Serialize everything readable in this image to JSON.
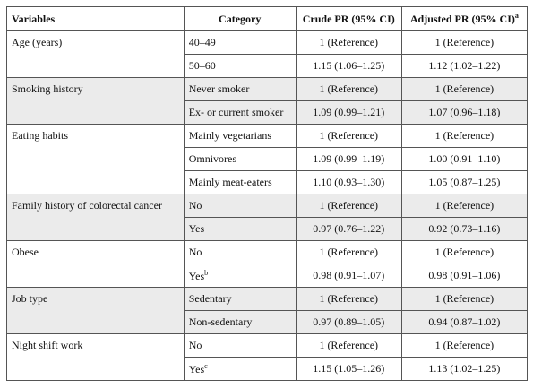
{
  "table": {
    "header": [
      "Variables",
      "Category",
      "Crude PR (95% CI)",
      "Adjusted PR (95% CI)"
    ],
    "header_notes": {
      "3": "a"
    },
    "groups": [
      {
        "variable": "Age (years)",
        "rows": [
          {
            "category": "40–49",
            "crude": "1 (Reference)",
            "adjusted": "1 (Reference)"
          },
          {
            "category": "50–60",
            "crude": "1.15 (1.06–1.25)",
            "adjusted": "1.12 (1.02–1.22)"
          }
        ]
      },
      {
        "variable": "Smoking history",
        "rows": [
          {
            "category": "Never smoker",
            "crude": "1 (Reference)",
            "adjusted": "1 (Reference)"
          },
          {
            "category": "Ex- or current smoker",
            "crude": "1.09 (0.99–1.21)",
            "adjusted": "1.07 (0.96–1.18)"
          }
        ]
      },
      {
        "variable": "Eating habits",
        "rows": [
          {
            "category": "Mainly vegetarians",
            "crude": "1 (Reference)",
            "adjusted": "1 (Reference)"
          },
          {
            "category": "Omnivores",
            "crude": "1.09 (0.99–1.19)",
            "adjusted": "1.00 (0.91–1.10)"
          },
          {
            "category": "Mainly meat-eaters",
            "crude": "1.10 (0.93–1.30)",
            "adjusted": "1.05 (0.87–1.25)"
          }
        ]
      },
      {
        "variable": "Family history of colorectal cancer",
        "rows": [
          {
            "category": "No",
            "crude": "1 (Reference)",
            "adjusted": "1 (Reference)"
          },
          {
            "category": "Yes",
            "crude": "0.97 (0.76–1.22)",
            "adjusted": "0.92 (0.73–1.16)"
          }
        ]
      },
      {
        "variable": "Obese",
        "rows": [
          {
            "category": "No",
            "crude": "1 (Reference)",
            "adjusted": "1 (Reference)"
          },
          {
            "category": "Yes",
            "note": "b",
            "crude": "0.98 (0.91–1.07)",
            "adjusted": "0.98 (0.91–1.06)"
          }
        ]
      },
      {
        "variable": "Job type",
        "rows": [
          {
            "category": "Sedentary",
            "crude": "1 (Reference)",
            "adjusted": "1 (Reference)"
          },
          {
            "category": "Non-sedentary",
            "crude": "0.97 (0.89–1.05)",
            "adjusted": "0.94 (0.87–1.02)"
          }
        ]
      },
      {
        "variable": "Night shift work",
        "rows": [
          {
            "category": "No",
            "crude": "1 (Reference)",
            "adjusted": "1 (Reference)"
          },
          {
            "category": "Yes",
            "note": "c",
            "crude": "1.15 (1.05–1.26)",
            "adjusted": "1.13 (1.02–1.25)"
          }
        ]
      }
    ]
  }
}
